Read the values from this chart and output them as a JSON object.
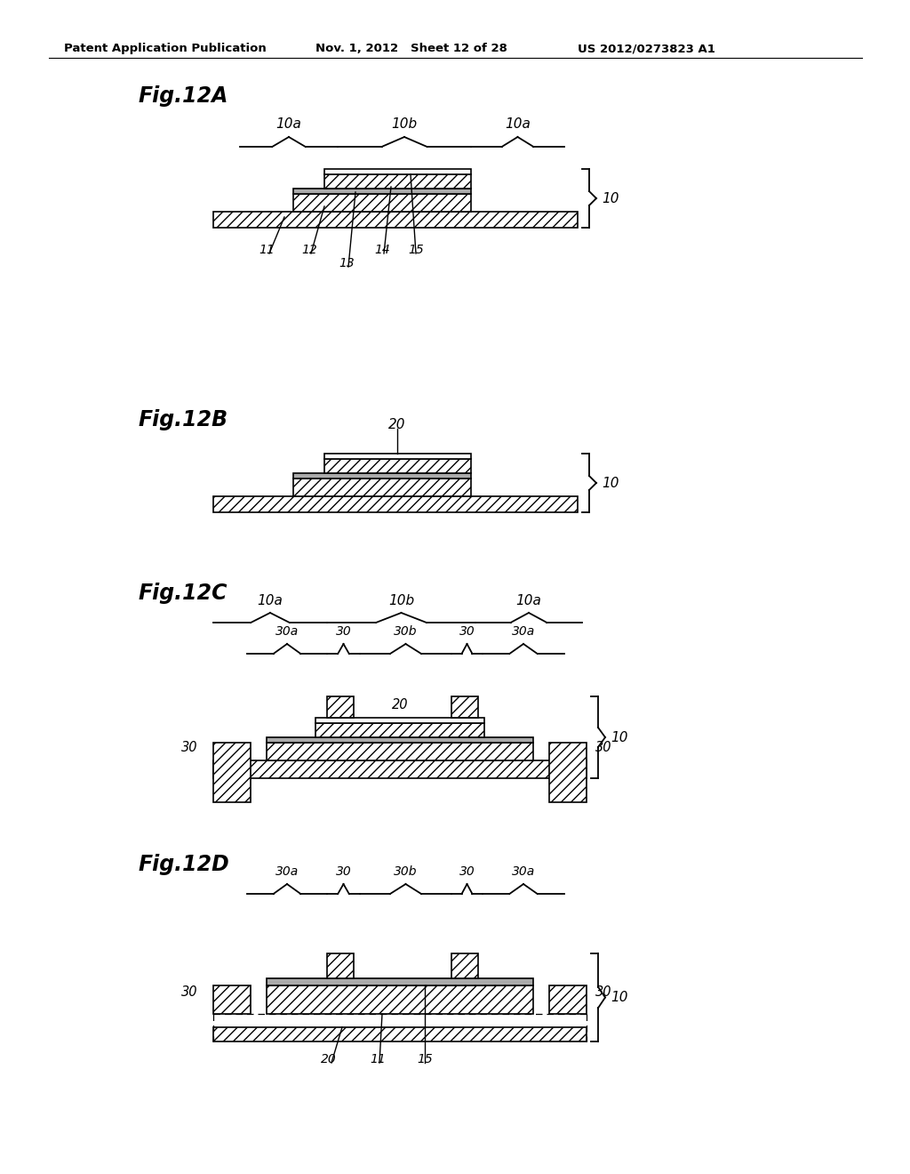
{
  "header_left": "Patent Application Publication",
  "header_mid": "Nov. 1, 2012   Sheet 12 of 28",
  "header_right": "US 2012/0273823 A1",
  "bg": "#ffffff",
  "lc": "#000000"
}
